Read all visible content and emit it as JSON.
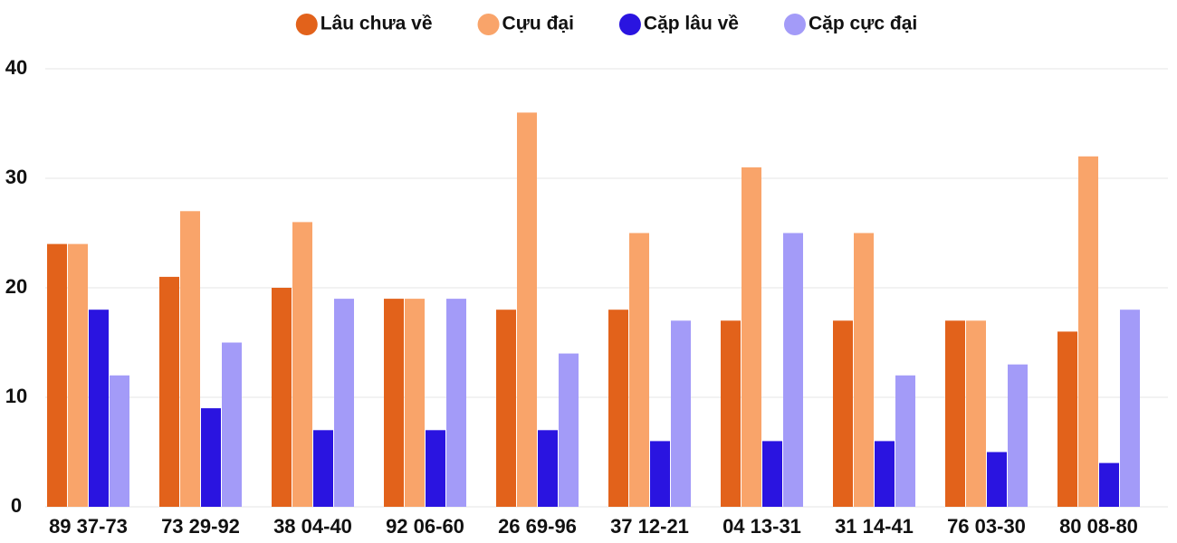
{
  "chart_data": {
    "type": "bar",
    "categories": [
      "89 37-73",
      "73 29-92",
      "38 04-40",
      "92 06-60",
      "26 69-96",
      "37 12-21",
      "04 13-31",
      "31 14-41",
      "76 03-30",
      "80 08-80"
    ],
    "series": [
      {
        "name": "Lâu chưa về",
        "color": "#e2621b",
        "values": [
          24,
          21,
          20,
          19,
          18,
          18,
          17,
          17,
          17,
          16
        ]
      },
      {
        "name": "Cựu đại",
        "color": "#f9a46a",
        "values": [
          24,
          27,
          26,
          19,
          36,
          25,
          31,
          25,
          17,
          32
        ]
      },
      {
        "name": "Cặp lâu về",
        "color": "#2a14e0",
        "values": [
          18,
          9,
          7,
          7,
          7,
          6,
          6,
          6,
          5,
          4
        ]
      },
      {
        "name": "Cặp cực đại",
        "color": "#a39bf8",
        "values": [
          12,
          15,
          19,
          19,
          14,
          17,
          25,
          12,
          13,
          18
        ]
      }
    ],
    "ylim": [
      0,
      40
    ],
    "yticks": [
      0,
      10,
      20,
      30,
      40
    ],
    "grid": true,
    "legend": "top"
  }
}
